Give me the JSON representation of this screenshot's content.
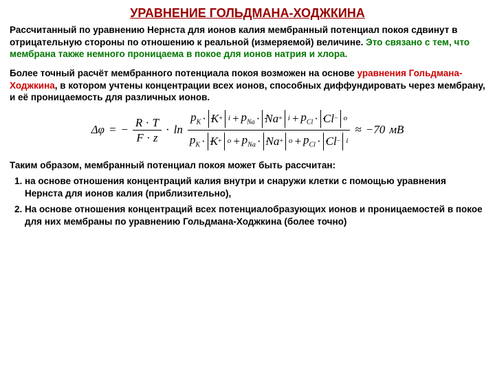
{
  "title": "УРАВНЕНИЕ ГОЛЬДМАНА-ХОДЖКИНА",
  "para1_part1": "Рассчитанный по уравнению Нернста для ионов калия мембранный потенциал покоя сдвинут в отрицательную стороны по отношению к реальной (измеряемой) величине. ",
  "para1_green": "Это связано с тем, что мембрана также немного проницаема в покое для ионов натрия и хлора.",
  "para2_part1": "Более точный расчёт мембранного потенциала покоя возможен на основе ",
  "para2_red": "уравнения Гольдмана-Ходжкина",
  "para2_part2": ", в котором учтены концентрации всех ионов, способных диффундировать через мембрану, и её проницаемость для различных ионов.",
  "formula": {
    "deltaPhi": "Δφ",
    "R": "R",
    "T": "T",
    "F": "F",
    "z": "z",
    "ln": "ln",
    "pK": "p",
    "K": "K",
    "Na": "Na",
    "Cl": "Cl",
    "plus": "+",
    "minus": "−",
    "i": "i",
    "o": "o",
    "approx": "≈",
    "result": "−70",
    "unit": "мВ"
  },
  "conclusion": "Таким образом, мембранный потенциал покоя может быть рассчитан:",
  "item1": "на основе отношения концентраций калия внутри и снаружи клетки с помощью уравнения Нернста для ионов калия (приблизительно),",
  "item2": "На основе отношения концентраций всех потенциалобразующих ионов и проницаемостей в покое для них мембраны по уравнению Гольдмана-Ходжкина (более точно)",
  "colors": {
    "title": "#990000",
    "green": "#007700",
    "red": "#cc0000",
    "text": "#000000",
    "bg": "#ffffff"
  }
}
